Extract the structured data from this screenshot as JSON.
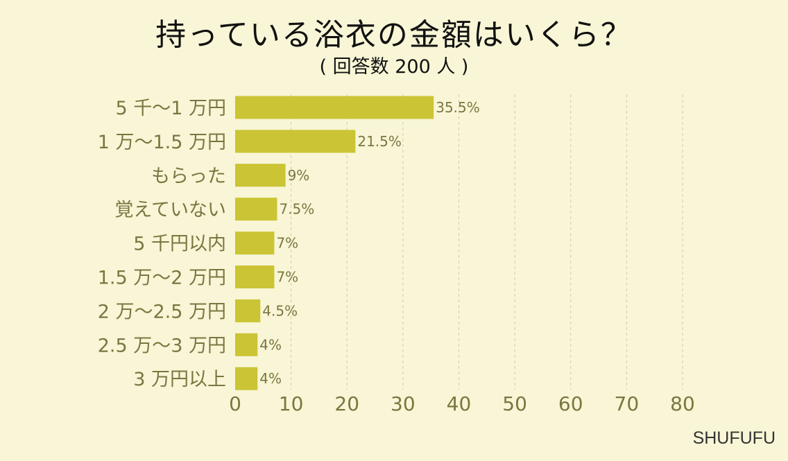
{
  "chart_data": {
    "type": "bar",
    "orientation": "horizontal",
    "title": "持っている浴衣の金額はいくら？",
    "subtitle": "( 回答数 200 人 )",
    "categories": [
      "5 千～1 万円",
      "1 万～1.5 万円",
      "もらった",
      "覚えていない",
      "5 千円以内",
      "1.5 万～2 万円",
      "2 万～2.5 万円",
      "2.5 万～3 万円",
      "3 万円以上"
    ],
    "values": [
      35.5,
      21.5,
      9,
      7.5,
      7,
      7,
      4.5,
      4,
      4
    ],
    "value_labels": [
      "35.5%",
      "21.5%",
      "9%",
      "7.5%",
      "7%",
      "7%",
      "4.5%",
      "4%",
      "4%"
    ],
    "xticks": [
      0,
      10,
      20,
      30,
      40,
      50,
      60,
      70,
      80
    ],
    "xlim": [
      0,
      80
    ],
    "grid": "vertical dashed",
    "colors": {
      "bar": "#cbc434",
      "text": "#7a7640",
      "grid": "#cfcca8",
      "background": "#f8f6d6"
    }
  },
  "brand": "SHUFUFU"
}
